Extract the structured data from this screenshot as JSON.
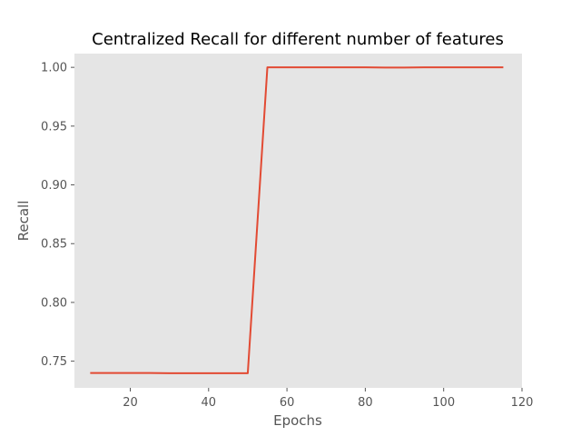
{
  "chart_data": {
    "type": "line",
    "title": "Centralized Recall for different number of features",
    "xlabel": "Epochs",
    "ylabel": "Recall",
    "xlim": [
      5.75,
      120
    ],
    "ylim": [
      0.7273,
      1.0117
    ],
    "xticks": [
      20,
      40,
      60,
      80,
      100,
      120
    ],
    "yticks": [
      0.75,
      0.8,
      0.85,
      0.9,
      0.95,
      1.0
    ],
    "xtick_labels": [
      "20",
      "40",
      "60",
      "80",
      "100",
      "120"
    ],
    "ytick_labels": [
      "0.75",
      "0.80",
      "0.85",
      "0.90",
      "0.95",
      "1.00"
    ],
    "grid": false,
    "legend": false,
    "background": "#e5e5e5",
    "series": [
      {
        "color": "#e24a33",
        "x": [
          10,
          15,
          20,
          25,
          30,
          35,
          40,
          45,
          50,
          55,
          60,
          65,
          70,
          75,
          80,
          85,
          90,
          95,
          100,
          105,
          110,
          115
        ],
        "y": [
          0.74,
          0.74,
          0.74,
          0.74,
          0.7398,
          0.7398,
          0.7398,
          0.7398,
          0.7398,
          1.0,
          1.0,
          1.0,
          1.0,
          1.0,
          1.0,
          0.9998,
          0.9998,
          1.0,
          1.0,
          1.0,
          1.0,
          1.0
        ]
      }
    ]
  }
}
